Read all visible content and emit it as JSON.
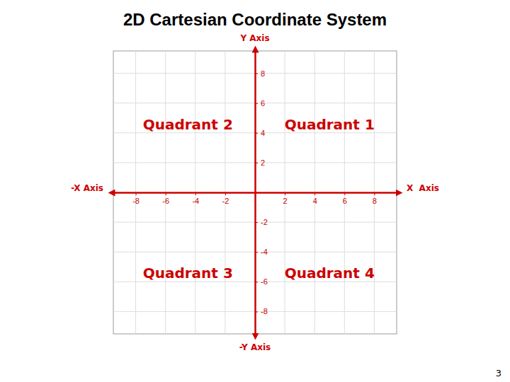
{
  "chart_data": {
    "type": "coordinate_plane",
    "title": "2D Cartesian Coordinate System",
    "x_label": "X  Axis",
    "neg_x_label": "-X Axis",
    "y_label": "Y Axis",
    "neg_y_label": "-Y Axis",
    "xlim": [
      -9.5,
      9.5
    ],
    "ylim": [
      -9.5,
      9.5
    ],
    "xticks": [
      -8,
      -6,
      -4,
      -2,
      2,
      4,
      6,
      8
    ],
    "yticks": [
      -8,
      -6,
      -4,
      -2,
      2,
      4,
      6,
      8
    ],
    "grid": true,
    "color": "#cc0000",
    "annotations": [
      {
        "text": "Quadrant 1",
        "x": 5.0,
        "y": 4.5
      },
      {
        "text": "Quadrant 2",
        "x": -4.5,
        "y": 4.5
      },
      {
        "text": "Quadrant 3",
        "x": -4.5,
        "y": -5.5
      },
      {
        "text": "Quadrant 4",
        "x": 5.0,
        "y": -5.5
      }
    ],
    "page_number": "3"
  }
}
